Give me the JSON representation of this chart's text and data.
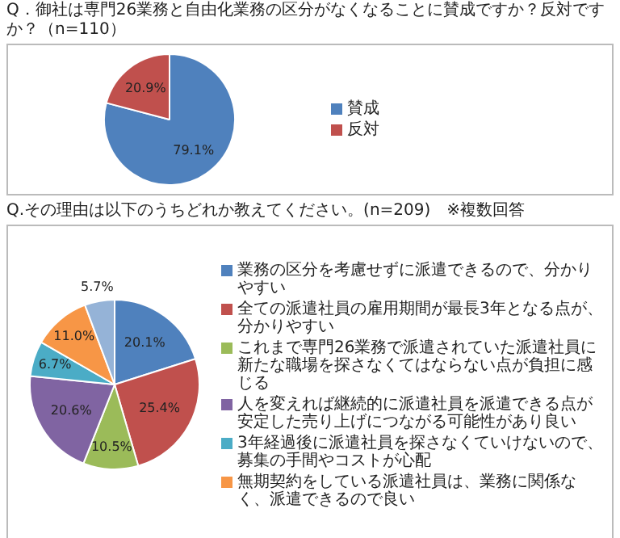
{
  "chart_data": [
    {
      "type": "pie",
      "title": "Q．御社は専門26業務と自由化業務の区分がなくなることに賛成ですか？反対ですか？（n=110）",
      "categories": [
        "賛成",
        "反対"
      ],
      "values": [
        79.1,
        20.9
      ],
      "colors": [
        "#4f81bd",
        "#c0504d"
      ],
      "value_labels": [
        "79.1%",
        "20.9%"
      ],
      "legend": "right"
    },
    {
      "type": "pie",
      "title": "Q.その理由は以下のうちどれか教えてください。(n=209)　※複数回答",
      "categories": [
        "業務の区分を考慮せずに派遣できるので、分かりやすい",
        "全ての派遣社員の雇用期間が最長3年となる点が、分かりやすい",
        "これまで専門26業務で派遣されていた派遣社員に新たな職場を探さなくてはならない点が負担に感じる",
        "人を変えれば継続的に派遣社員を派遣できる点が安定した売り上げにつながる可能性があり良い",
        "3年経過後に派遣社員を探さなくていけないので、募集の手間やコストが心配",
        "無期契約をしている派遣社員は、業務に関係なく、派遣できるので良い",
        null
      ],
      "values": [
        20.1,
        25.4,
        10.5,
        20.6,
        6.7,
        11.0,
        5.7
      ],
      "colors": [
        "#4f81bd",
        "#c0504d",
        "#9bbb59",
        "#8064a2",
        "#4bacc6",
        "#f79646",
        "#95b3d7"
      ],
      "value_labels": [
        "20.1%",
        "25.4%",
        "10.5%",
        "20.6%",
        "6.7%",
        "11.0%",
        "5.7%"
      ],
      "legend": "right"
    }
  ]
}
